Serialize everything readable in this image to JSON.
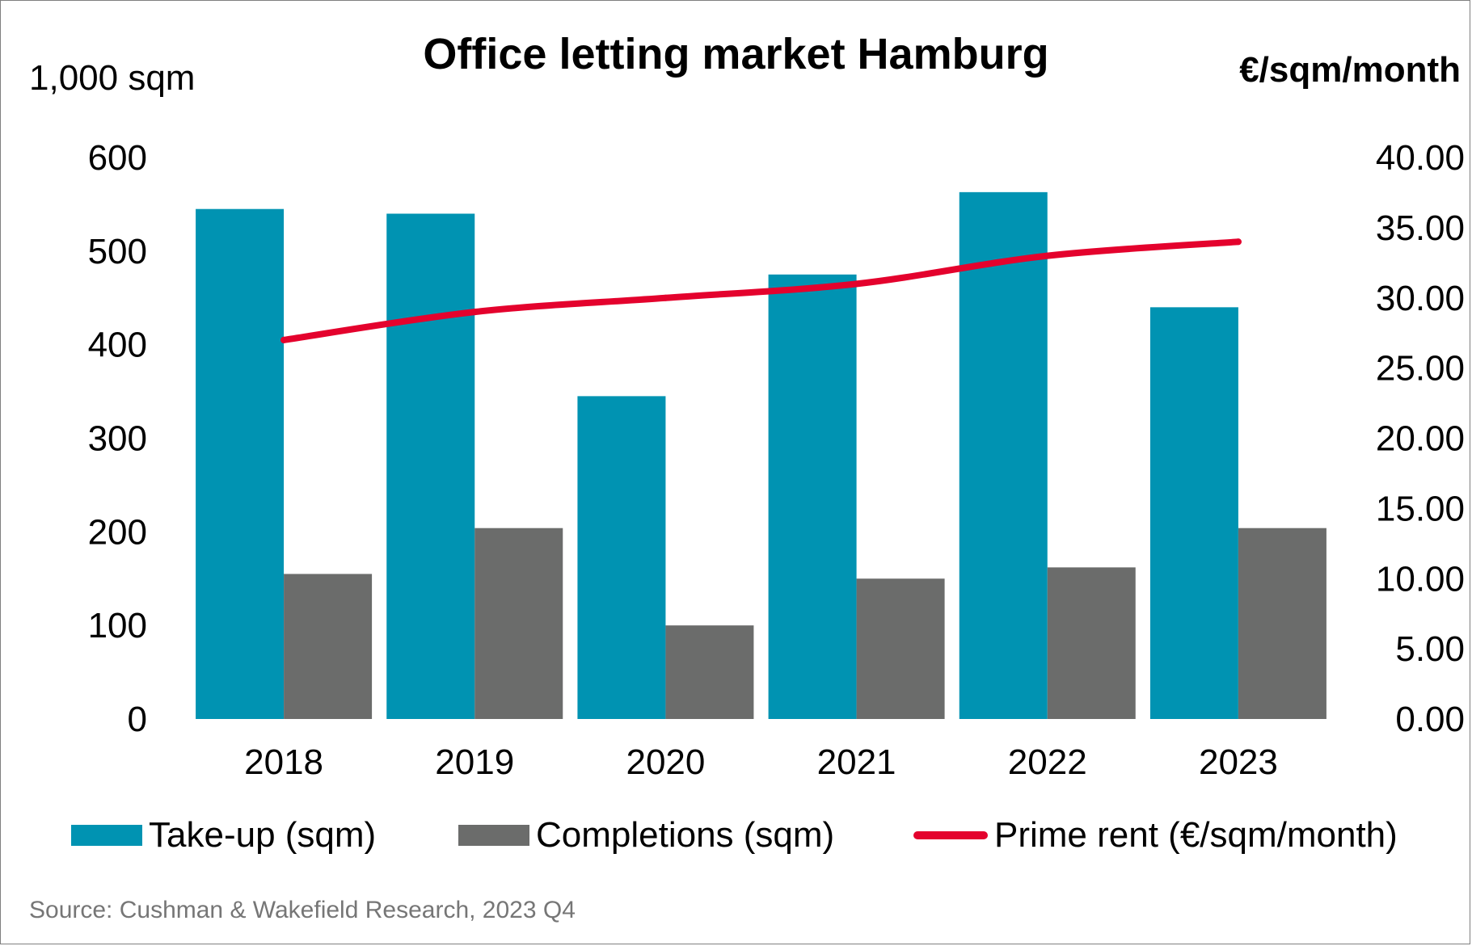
{
  "colors": {
    "takeup": "#0093B2",
    "completions": "#6B6C6B",
    "prime_rent": "#E4022D",
    "source_text": "#767676"
  },
  "chart_data": {
    "type": "bar",
    "title": "Office letting market Hamburg",
    "ylabel_left": "1,000 sqm",
    "ylabel_right": "€/sqm/month",
    "categories": [
      "2018",
      "2019",
      "2020",
      "2021",
      "2022",
      "2023"
    ],
    "series": [
      {
        "name": "Take-up (sqm)",
        "type": "bar",
        "axis": "left",
        "values": [
          545,
          540,
          345,
          475,
          563,
          440
        ]
      },
      {
        "name": "Completions (sqm)",
        "type": "bar",
        "axis": "left",
        "values": [
          155,
          204,
          100,
          150,
          162,
          204
        ]
      },
      {
        "name": "Prime rent (€/sqm/month)",
        "type": "line",
        "axis": "right",
        "values": [
          27.0,
          29.0,
          30.0,
          31.0,
          33.0,
          34.0
        ]
      }
    ],
    "ylim_left": [
      0,
      600
    ],
    "ylim_right": [
      0,
      40
    ],
    "yticks_left": [
      "0",
      "100",
      "200",
      "300",
      "400",
      "500",
      "600"
    ],
    "yticks_right": [
      "0.00",
      "5.00",
      "10.00",
      "15.00",
      "20.00",
      "25.00",
      "30.00",
      "35.00",
      "40.00"
    ],
    "grid": false,
    "legend_position": "bottom"
  },
  "source": "Source: Cushman & Wakefield Research, 2023 Q4"
}
